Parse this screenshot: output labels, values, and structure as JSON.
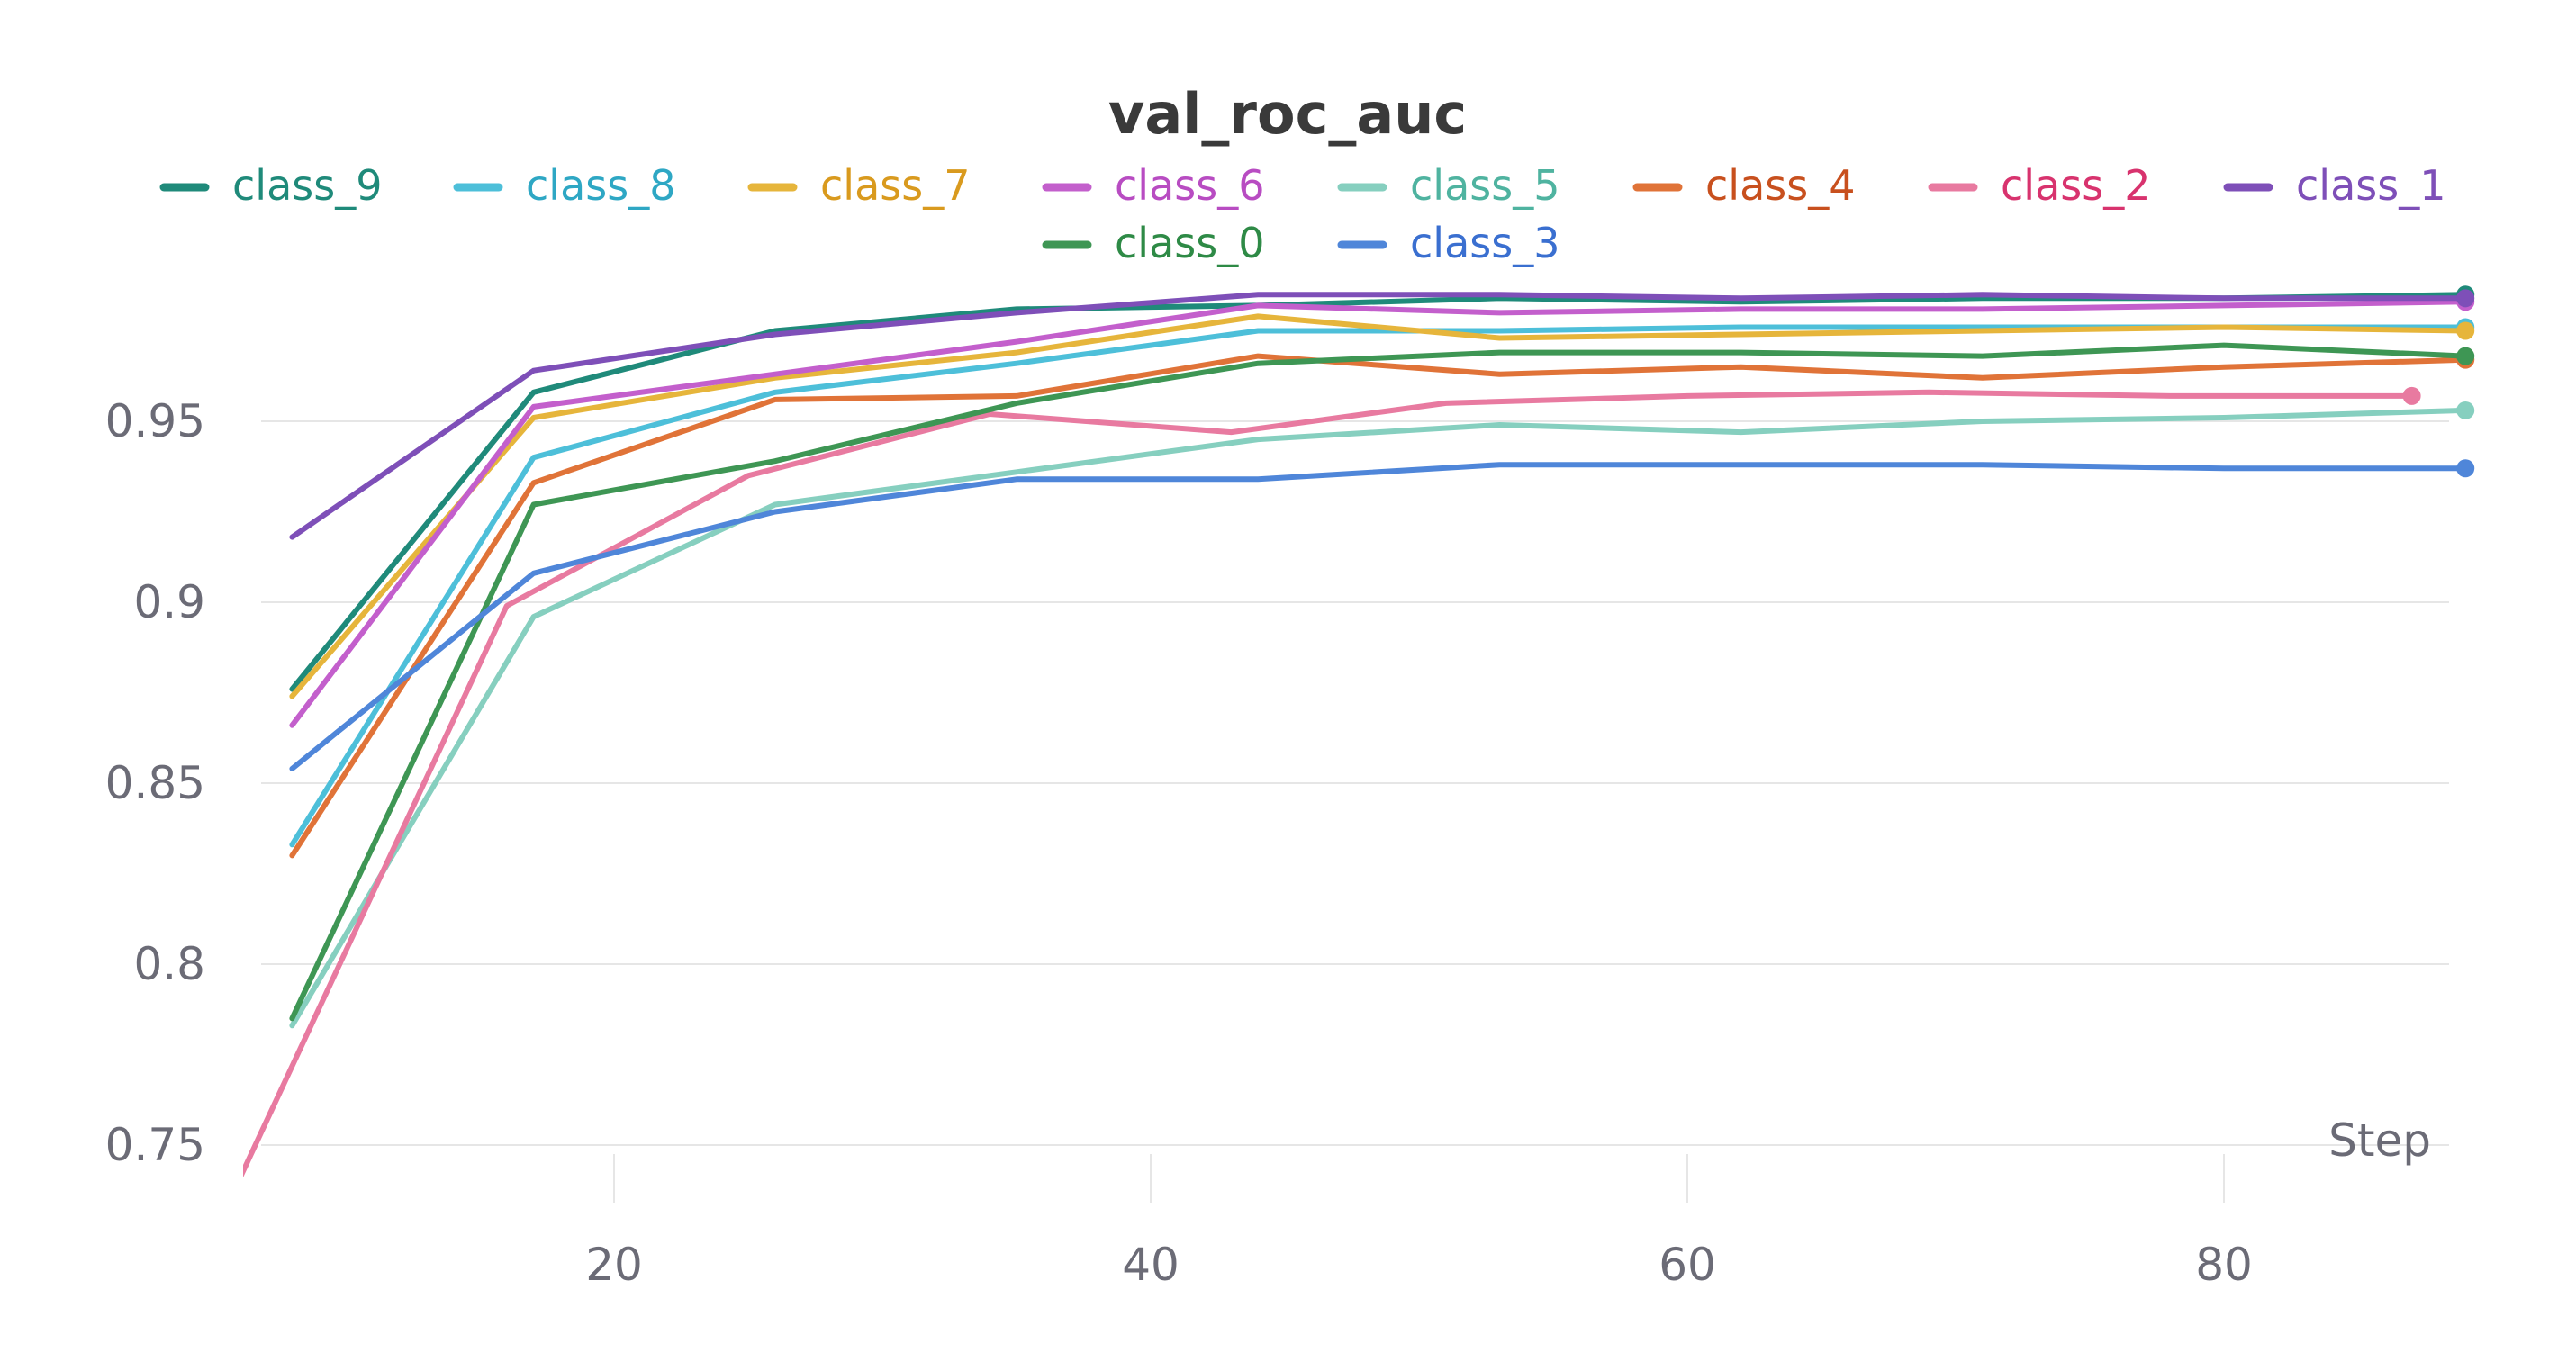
{
  "chart_data": {
    "type": "line",
    "title": "val_roc_auc",
    "xlabel": "Step",
    "ylabel": "",
    "xlim": [
      6,
      90
    ],
    "ylim": [
      0.74,
      0.99
    ],
    "x_ticks": [
      20,
      40,
      60,
      80
    ],
    "y_ticks": [
      0.75,
      0.8,
      0.85,
      0.9,
      0.95
    ],
    "x_tick_labels": [
      "20",
      "40",
      "60",
      "80"
    ],
    "y_tick_labels": [
      "0.75",
      "0.8",
      "0.85",
      "0.9",
      "0.95"
    ],
    "legend_placement": "top",
    "grid": "horizontal",
    "series": [
      {
        "name": "class_9",
        "color": "#1f8a7a",
        "end_marker": true,
        "x": [
          8,
          17,
          26,
          35,
          44,
          53,
          62,
          71,
          80,
          89
        ],
        "y": [
          0.876,
          0.958,
          0.975,
          0.981,
          0.982,
          0.984,
          0.983,
          0.984,
          0.984,
          0.985
        ]
      },
      {
        "name": "class_8",
        "color": "#4dbfd9",
        "end_marker": true,
        "x": [
          8,
          17,
          26,
          35,
          44,
          53,
          62,
          71,
          80,
          89
        ],
        "y": [
          0.833,
          0.94,
          0.958,
          0.966,
          0.975,
          0.975,
          0.976,
          0.976,
          0.976,
          0.976
        ]
      },
      {
        "name": "class_7",
        "color": "#e6b53b",
        "end_marker": true,
        "x": [
          8,
          17,
          26,
          35,
          44,
          53,
          62,
          71,
          80,
          89
        ],
        "y": [
          0.874,
          0.951,
          0.962,
          0.969,
          0.979,
          0.973,
          0.974,
          0.975,
          0.976,
          0.975
        ]
      },
      {
        "name": "class_6",
        "color": "#c35fcc",
        "end_marker": true,
        "x": [
          8,
          17,
          26,
          35,
          44,
          53,
          62,
          71,
          80,
          89
        ],
        "y": [
          0.866,
          0.954,
          0.963,
          0.972,
          0.982,
          0.98,
          0.981,
          0.981,
          0.982,
          0.983
        ]
      },
      {
        "name": "class_5",
        "color": "#86cfbf",
        "end_marker": true,
        "x": [
          8,
          17,
          26,
          35,
          44,
          53,
          62,
          71,
          80,
          89
        ],
        "y": [
          0.783,
          0.896,
          0.927,
          0.936,
          0.945,
          0.949,
          0.947,
          0.95,
          0.951,
          0.953
        ]
      },
      {
        "name": "class_4",
        "color": "#e07338",
        "end_marker": true,
        "x": [
          8,
          17,
          26,
          35,
          44,
          53,
          62,
          71,
          80,
          89
        ],
        "y": [
          0.83,
          0.933,
          0.956,
          0.957,
          0.968,
          0.963,
          0.965,
          0.962,
          0.965,
          0.967
        ]
      },
      {
        "name": "class_2",
        "color": "#e87aa0",
        "end_marker": true,
        "x": [
          6,
          16,
          25,
          34,
          43,
          51,
          60,
          69,
          78,
          87
        ],
        "y": [
          0.74,
          0.899,
          0.935,
          0.952,
          0.947,
          0.955,
          0.957,
          0.958,
          0.957,
          0.957
        ]
      },
      {
        "name": "class_1",
        "color": "#7e4fb8",
        "end_marker": true,
        "x": [
          8,
          17,
          26,
          35,
          44,
          53,
          62,
          71,
          80,
          89
        ],
        "y": [
          0.918,
          0.964,
          0.974,
          0.98,
          0.985,
          0.985,
          0.984,
          0.985,
          0.984,
          0.984
        ]
      },
      {
        "name": "class_0",
        "color": "#3e9654",
        "end_marker": true,
        "x": [
          8,
          17,
          26,
          35,
          44,
          53,
          62,
          71,
          80,
          89
        ],
        "y": [
          0.785,
          0.927,
          0.939,
          0.955,
          0.966,
          0.969,
          0.969,
          0.968,
          0.971,
          0.968
        ]
      },
      {
        "name": "class_3",
        "color": "#4f86d9",
        "end_marker": true,
        "x": [
          8,
          17,
          26,
          35,
          44,
          53,
          62,
          71,
          80,
          89
        ],
        "y": [
          0.854,
          0.908,
          0.925,
          0.934,
          0.934,
          0.938,
          0.938,
          0.938,
          0.937,
          0.937
        ]
      }
    ],
    "legend_text_colors": {
      "class_9": "#1f8a7a",
      "class_8": "#2ea7c4",
      "class_7": "#d99a1e",
      "class_6": "#b84cc2",
      "class_5": "#4fb3a0",
      "class_4": "#c8501e",
      "class_2": "#d8336e",
      "class_1": "#7e4fb8",
      "class_0": "#2e8a46",
      "class_3": "#3a6fd0"
    }
  }
}
